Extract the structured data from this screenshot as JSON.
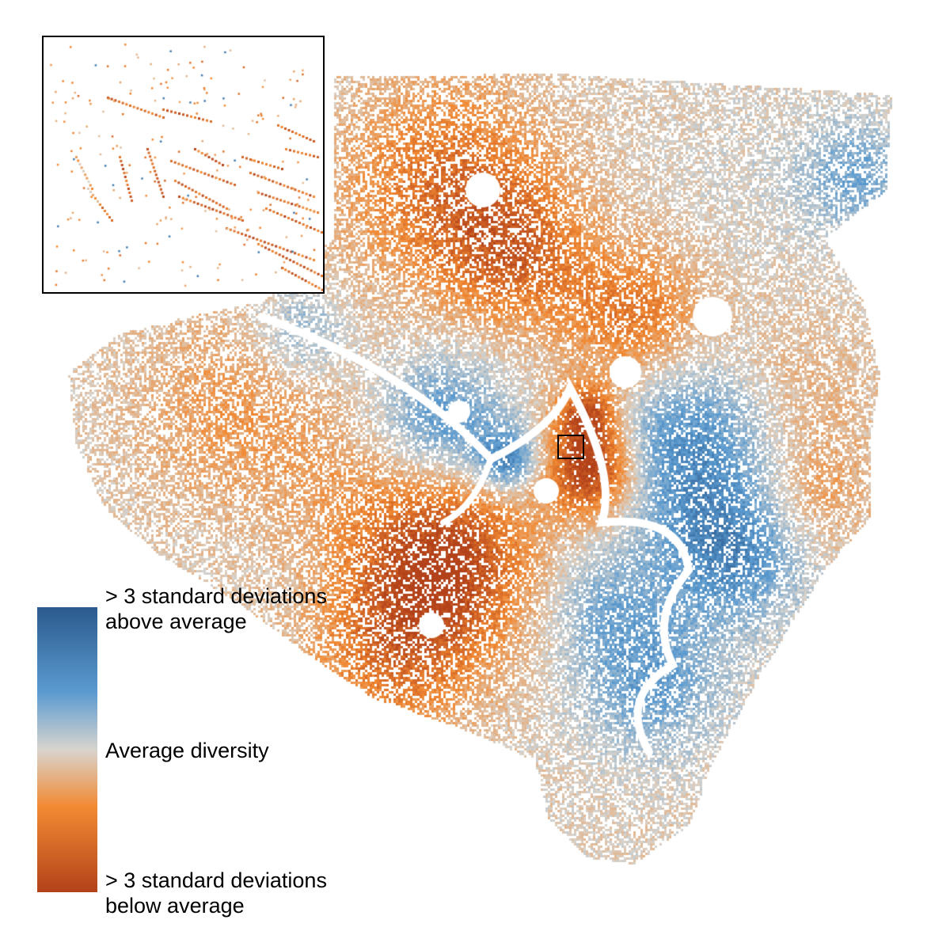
{
  "legend": {
    "high_line1": "> 3 standard deviations",
    "high_line2": "above average",
    "middle": "Average diversity",
    "low_line1": "> 3 standard deviations",
    "low_line2": "below average"
  },
  "color_scale": {
    "high": "#2b5a8e",
    "high_mid": "#5b9bd0",
    "neutral": "#d8d4ce",
    "low_mid": "#f28a33",
    "low": "#b3421a"
  }
}
